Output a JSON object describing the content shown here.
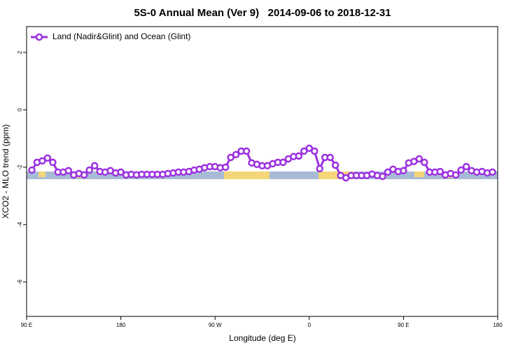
{
  "chart_data": {
    "type": "line",
    "title": "5S-0 Annual Mean (Ver 9)   2014-09-06 to 2018-12-31",
    "x_label": "Longitude (deg E)",
    "y_label": "XCO2 - MLO trend (ppm)",
    "legend": "top-left",
    "x": [
      95,
      100,
      105,
      110,
      115,
      120,
      125,
      130,
      135,
      140,
      145,
      150,
      155,
      160,
      165,
      170,
      175,
      180,
      185,
      190,
      195,
      200,
      205,
      210,
      215,
      220,
      225,
      230,
      235,
      240,
      245,
      250,
      255,
      260,
      265,
      270,
      275,
      280,
      285,
      290,
      295,
      300,
      305,
      310,
      315,
      320,
      325,
      330,
      335,
      340,
      345,
      350,
      355,
      360,
      365,
      370,
      375,
      380,
      385,
      390,
      395,
      400,
      405,
      410,
      415,
      420,
      425,
      430,
      435,
      440,
      445,
      450,
      455,
      460,
      465,
      470,
      475,
      480,
      485,
      490,
      495,
      500,
      505,
      510,
      515,
      520,
      525,
      530,
      535
    ],
    "series": [
      {
        "name": "Land (Nadir&Glint) and Ocean (Glint)",
        "color": "#9b30e0",
        "values": [
          -2.1,
          -1.83,
          -1.78,
          -1.68,
          -1.83,
          -2.17,
          -2.17,
          -2.12,
          -2.27,
          -2.22,
          -2.27,
          -2.1,
          -1.95,
          -2.15,
          -2.17,
          -2.12,
          -2.2,
          -2.17,
          -2.27,
          -2.25,
          -2.27,
          -2.25,
          -2.25,
          -2.25,
          -2.25,
          -2.25,
          -2.22,
          -2.2,
          -2.17,
          -2.17,
          -2.15,
          -2.1,
          -2.07,
          -2.02,
          -1.98,
          -1.98,
          -2.02,
          -2.0,
          -1.66,
          -1.56,
          -1.44,
          -1.44,
          -1.85,
          -1.9,
          -1.95,
          -1.95,
          -1.88,
          -1.83,
          -1.83,
          -1.71,
          -1.63,
          -1.61,
          -1.44,
          -1.34,
          -1.44,
          -2.05,
          -1.66,
          -1.66,
          -1.93,
          -2.29,
          -2.37,
          -2.29,
          -2.29,
          -2.29,
          -2.29,
          -2.24,
          -2.29,
          -2.32,
          -2.17,
          -2.07,
          -2.15,
          -2.12,
          -1.85,
          -1.8,
          -1.71,
          -1.83,
          -2.17,
          -2.17,
          -2.15,
          -2.27,
          -2.22,
          -2.27,
          -2.1,
          -1.98,
          -2.12,
          -2.17,
          -2.15,
          -2.2,
          -2.17
        ]
      }
    ],
    "xlim": [
      90,
      540
    ],
    "xticks": [
      {
        "value": 90,
        "label": "90 E"
      },
      180,
      {
        "value": 270,
        "label": "90 W"
      },
      {
        "value": 360,
        "label": "0"
      },
      {
        "value": 450,
        "label": "90 E"
      },
      {
        "value": 540,
        "label": "180"
      }
    ],
    "ylim": [
      -7.2,
      2.9
    ],
    "yticks": [
      -6,
      -4,
      -2,
      0,
      2
    ]
  }
}
